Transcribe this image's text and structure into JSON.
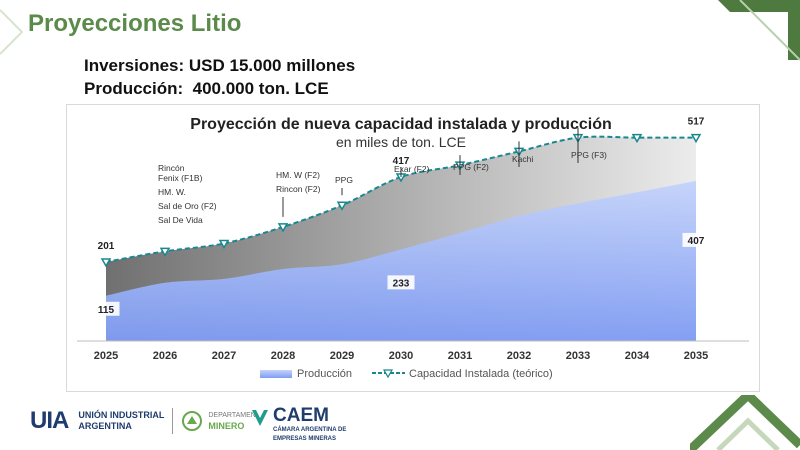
{
  "slide": {
    "title": "Proyecciones Litio",
    "line1": "Inversiones: USD 15.000 millones",
    "line2": "Producción:  400.000 ton. LCE"
  },
  "chart_data": {
    "type": "area",
    "title": "Proyección de nueva capacidad instalada y producción",
    "subtitle": "en miles de ton. LCE",
    "categories": [
      "2025",
      "2026",
      "2027",
      "2028",
      "2029",
      "2030",
      "2031",
      "2032",
      "2033",
      "2034",
      "2035"
    ],
    "series": [
      {
        "name": "Producción",
        "type": "area",
        "values": [
          115,
          148,
          158,
          183,
          195,
          233,
          275,
          318,
          350,
          378,
          407
        ]
      },
      {
        "name": "Capacidad Instalada (teórico)",
        "type": "line",
        "values": [
          201,
          228,
          248,
          290,
          345,
          417,
          447,
          482,
          517,
          517,
          517
        ]
      }
    ],
    "data_labels": [
      {
        "category": "2025",
        "series": "Capacidad Instalada (teórico)",
        "text": "201"
      },
      {
        "category": "2025",
        "series": "Producción",
        "text": "115"
      },
      {
        "category": "2030",
        "series": "Capacidad Instalada (teórico)",
        "text": "417"
      },
      {
        "category": "2030",
        "series": "Producción",
        "text": "233"
      },
      {
        "category": "2035",
        "series": "Capacidad Instalada (teórico)",
        "text": "517"
      },
      {
        "category": "2035",
        "series": "Producción",
        "text": "407"
      }
    ],
    "annotations": [
      {
        "category": "2026",
        "lines": [
          "Rincón",
          "Fenix (F1B)",
          "HM. W.",
          "Sal de Oro (F2)",
          "Sal De Vida"
        ]
      },
      {
        "category": "2028",
        "lines": [
          "HM. W (F2)",
          "Rincon (F2)"
        ]
      },
      {
        "category": "2029",
        "lines": [
          "PPG"
        ]
      },
      {
        "category": "2030",
        "lines": [
          "Exar (F2)"
        ]
      },
      {
        "category": "2031",
        "lines": [
          "PPG (F2)"
        ]
      },
      {
        "category": "2032",
        "lines": [
          "Kachi"
        ]
      },
      {
        "category": "2033",
        "lines": [
          "PPG (F3)"
        ]
      }
    ],
    "ylim": [
      0,
      600
    ],
    "grid": false,
    "legend": "bottom",
    "colors": {
      "production_top": "#c4d3fb",
      "production_bottom": "#7f9cf3",
      "capacity_area_left": "#707070",
      "capacity_area_right": "#ececec",
      "capacity_line": "#18878f"
    }
  },
  "footer": {
    "uia_mark": "UIA",
    "uia_line1": "UNIÓN INDUSTRIAL",
    "uia_line2": "ARGENTINA",
    "dept_line1": "DEPARTAMENTO",
    "dept_line2": "MINERO",
    "caem_name": "CAEM",
    "caem_line1": "CÁMARA ARGENTINA DE",
    "caem_line2": "EMPRESAS MINERAS"
  },
  "colors": {
    "brand_green": "#5b8a4a",
    "title_green": "#5b8a4a"
  }
}
